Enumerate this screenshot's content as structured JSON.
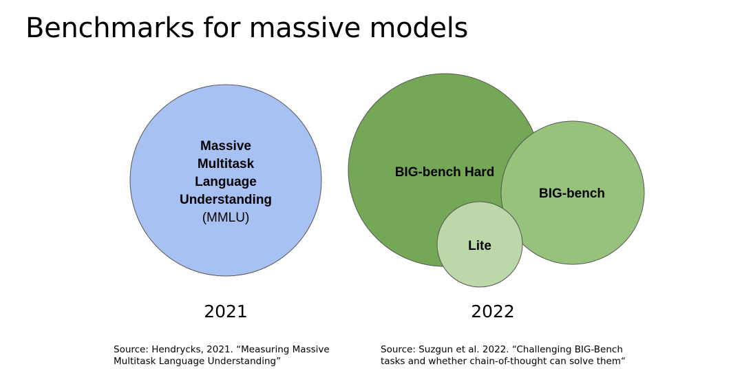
{
  "title": "Benchmarks for massive models",
  "left_group": {
    "circle_label_lines": [
      "Massive",
      "Multitask",
      "Language",
      "Understanding"
    ],
    "circle_sub_label": "(MMLU)",
    "year": "2021",
    "source_line1": "Source: Hendrycks, 2021. “Measuring Massive",
    "source_line2": "Multitask Language Understanding”",
    "colors": {
      "fill": "#a7c1f2",
      "stroke": "#555555"
    }
  },
  "right_group": {
    "hard_label": "BIG-bench Hard",
    "bench_label": "BIG-bench",
    "lite_label": "Lite",
    "year": "2022",
    "source_line1": "Source: Suzgun et al. 2022. “Challenging BIG-Bench",
    "source_line2": "tasks and whether chain-of-thought can solve them“",
    "colors": {
      "hard_fill": "#74a856",
      "bench_fill": "#97c27c",
      "lite_fill": "#bcd8a9",
      "stroke": "#555555"
    }
  }
}
